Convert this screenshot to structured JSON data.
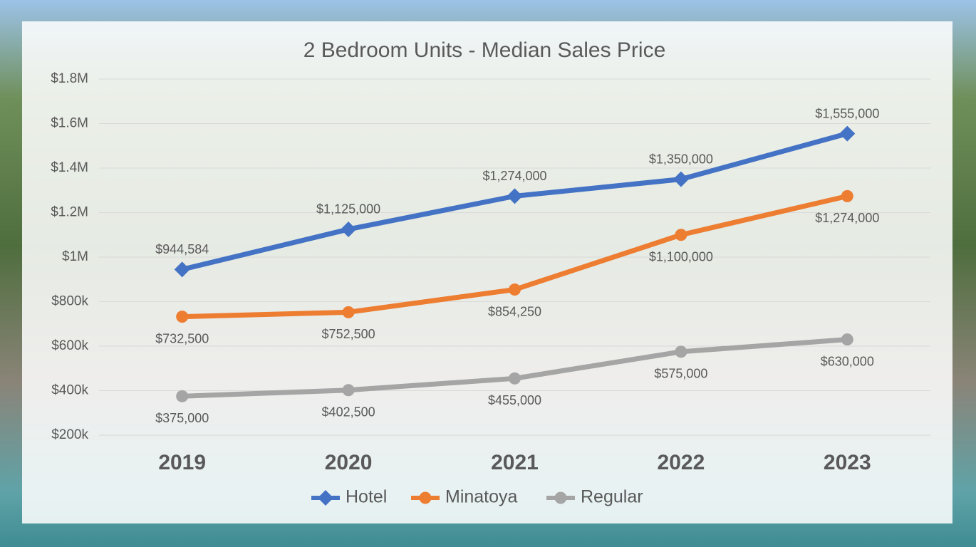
{
  "chart_data": {
    "type": "line",
    "title": "2  Bedroom Units - Median Sales Price",
    "categories": [
      "2019",
      "2020",
      "2021",
      "2022",
      "2023"
    ],
    "series": [
      {
        "name": "Hotel",
        "color": "#4472c4",
        "marker": "diamond",
        "values": [
          944584,
          1125000,
          1274000,
          1350000,
          1555000
        ],
        "value_labels": [
          "$944,584",
          "$1,125,000",
          "$1,274,000",
          "$1,350,000",
          "$1,555,000"
        ]
      },
      {
        "name": "Minatoya",
        "color": "#ed7d31",
        "marker": "circle",
        "values": [
          732500,
          752500,
          854250,
          1100000,
          1274000
        ],
        "value_labels": [
          "$732,500",
          "$752,500",
          "$854,250",
          "$1,100,000",
          "$1,274,000"
        ]
      },
      {
        "name": "Regular",
        "color": "#a5a5a5",
        "marker": "circle",
        "values": [
          375000,
          402500,
          455000,
          575000,
          630000
        ],
        "value_labels": [
          "$375,000",
          "$402,500",
          "$455,000",
          "$575,000",
          "$630,000"
        ]
      }
    ],
    "ylim": [
      200000,
      1800000
    ],
    "yticks": [
      {
        "value": 200000,
        "label": "$200k"
      },
      {
        "value": 400000,
        "label": "$400k"
      },
      {
        "value": 600000,
        "label": "$600k"
      },
      {
        "value": 800000,
        "label": "$800k"
      },
      {
        "value": 1000000,
        "label": "$1M"
      },
      {
        "value": 1200000,
        "label": "$1.2M"
      },
      {
        "value": 1400000,
        "label": "$1.4M"
      },
      {
        "value": 1600000,
        "label": "$1.6M"
      },
      {
        "value": 1800000,
        "label": "$1.8M"
      }
    ],
    "grid": true,
    "legend": "bottom"
  }
}
